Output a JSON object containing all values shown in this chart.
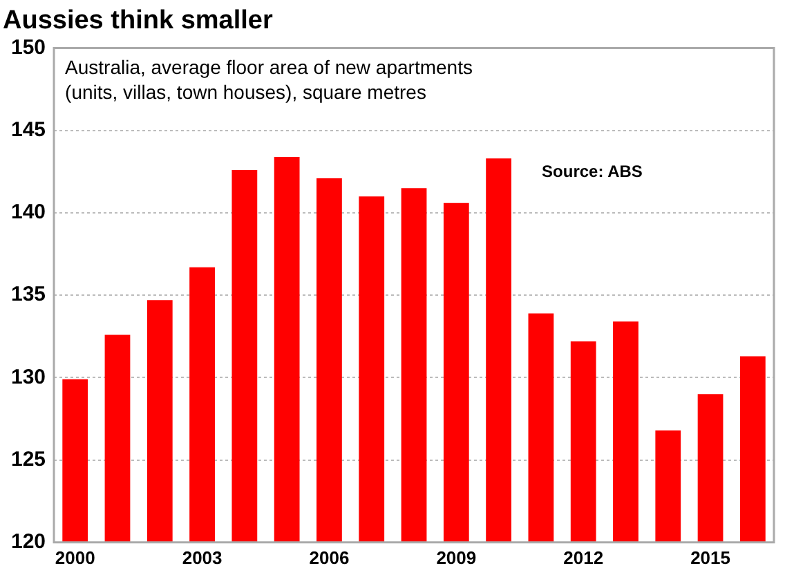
{
  "chart_data": {
    "type": "bar",
    "title": "Aussies think smaller",
    "subtitle": "Australia, average floor area of new apartments (units, villas, town houses), square metres",
    "annotations": [
      "Source: ABS"
    ],
    "categories": [
      "2000",
      null,
      null,
      "2003",
      null,
      null,
      "2006",
      null,
      null,
      "2009",
      null,
      null,
      "2012",
      null,
      null,
      "2015",
      null
    ],
    "values": [
      129.9,
      132.6,
      134.7,
      136.7,
      142.6,
      143.4,
      142.1,
      141.0,
      141.5,
      140.6,
      143.3,
      133.9,
      132.2,
      133.4,
      126.8,
      129.0,
      131.3
    ],
    "color": "#ff0000",
    "ylim": [
      120,
      150
    ],
    "yticks": [
      120,
      125,
      130,
      135,
      140,
      145,
      150
    ],
    "grid": "y",
    "legend": false
  }
}
